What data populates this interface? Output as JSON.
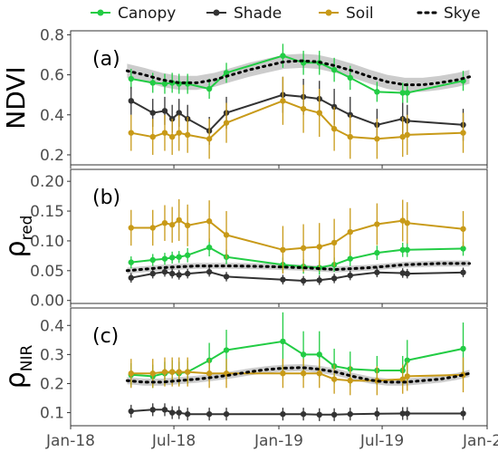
{
  "chart_data": {
    "type": "line",
    "legend": {
      "position": "top",
      "entries": [
        {
          "name": "Canopy",
          "color": "#22cc44",
          "style": "line-point"
        },
        {
          "name": "Shade",
          "color": "#333333",
          "style": "line-point"
        },
        {
          "name": "Soil",
          "color": "#c89a18",
          "style": "line-point"
        },
        {
          "name": "Skye",
          "color": "#000000",
          "style": "dotted"
        }
      ]
    },
    "x_ticks": [
      {
        "label": "Jan-18",
        "date": "2018-01-01"
      },
      {
        "label": "Jul-18",
        "date": "2018-07-01"
      },
      {
        "label": "Jan-19",
        "date": "2019-01-01"
      },
      {
        "label": "Jul-19",
        "date": "2019-07-01"
      },
      {
        "label": "Jan-20",
        "date": "2020-01-01"
      }
    ],
    "xlim": [
      "2018-01-01",
      "2020-01-01"
    ],
    "panels": [
      {
        "label": "(a)",
        "ylabel": "NDVI",
        "ylim": [
          0.15,
          0.82
        ],
        "yticks": [
          0.2,
          0.4,
          0.6,
          0.8
        ],
        "ytick_labels": [
          "0.2",
          "0.4",
          "0.6",
          "0.8"
        ],
        "skye": {
          "x": [
            "2018-04-10",
            "2018-05-10",
            "2018-06-10",
            "2018-07-10",
            "2018-08-10",
            "2018-09-10",
            "2018-10-10",
            "2018-11-10",
            "2018-12-10",
            "2019-01-10",
            "2019-02-10",
            "2019-03-10",
            "2019-04-10",
            "2019-05-10",
            "2019-06-10",
            "2019-07-10",
            "2019-08-10",
            "2019-09-10",
            "2019-10-10",
            "2019-11-10",
            "2019-12-01"
          ],
          "y": [
            0.62,
            0.6,
            0.575,
            0.56,
            0.56,
            0.575,
            0.6,
            0.625,
            0.645,
            0.665,
            0.67,
            0.665,
            0.645,
            0.62,
            0.59,
            0.565,
            0.55,
            0.55,
            0.56,
            0.575,
            0.59
          ],
          "band": 0.035
        },
        "series": [
          {
            "name": "Canopy",
            "color": "#22cc44",
            "x": [
              "2018-04-17",
              "2018-05-25",
              "2018-06-15",
              "2018-06-28",
              "2018-07-10",
              "2018-07-25",
              "2018-09-01",
              "2018-10-01",
              "2019-01-08",
              "2019-02-13",
              "2019-03-13",
              "2019-04-08",
              "2019-05-06",
              "2019-06-22",
              "2019-08-06",
              "2019-08-14",
              "2019-11-20"
            ],
            "y": [
              0.58,
              0.56,
              0.555,
              0.56,
              0.555,
              0.555,
              0.53,
              0.61,
              0.695,
              0.66,
              0.66,
              0.625,
              0.585,
              0.515,
              0.51,
              0.51,
              0.57
            ],
            "err": [
              0.05,
              0.05,
              0.05,
              0.05,
              0.05,
              0.05,
              0.05,
              0.05,
              0.06,
              0.06,
              0.06,
              0.06,
              0.06,
              0.05,
              0.05,
              0.05,
              0.05
            ]
          },
          {
            "name": "Shade",
            "color": "#333333",
            "x": [
              "2018-04-17",
              "2018-05-25",
              "2018-06-15",
              "2018-06-28",
              "2018-07-10",
              "2018-07-25",
              "2018-09-01",
              "2018-10-01",
              "2019-01-08",
              "2019-02-13",
              "2019-03-13",
              "2019-04-08",
              "2019-05-06",
              "2019-06-22",
              "2019-08-06",
              "2019-08-14",
              "2019-11-20"
            ],
            "y": [
              0.47,
              0.41,
              0.42,
              0.38,
              0.41,
              0.38,
              0.32,
              0.41,
              0.5,
              0.49,
              0.48,
              0.44,
              0.4,
              0.35,
              0.38,
              0.37,
              0.35
            ],
            "err": [
              0.07,
              0.07,
              0.07,
              0.07,
              0.07,
              0.07,
              0.07,
              0.08,
              0.09,
              0.09,
              0.09,
              0.09,
              0.09,
              0.08,
              0.08,
              0.08,
              0.08
            ]
          },
          {
            "name": "Soil",
            "color": "#c89a18",
            "x": [
              "2018-04-17",
              "2018-05-25",
              "2018-06-15",
              "2018-06-28",
              "2018-07-10",
              "2018-07-25",
              "2018-09-01",
              "2018-10-01",
              "2019-01-08",
              "2019-02-13",
              "2019-03-13",
              "2019-04-08",
              "2019-05-06",
              "2019-06-22",
              "2019-08-06",
              "2019-08-14",
              "2019-11-20"
            ],
            "y": [
              0.31,
              0.29,
              0.31,
              0.29,
              0.31,
              0.3,
              0.28,
              0.36,
              0.47,
              0.43,
              0.41,
              0.33,
              0.29,
              0.28,
              0.29,
              0.3,
              0.31
            ],
            "err": [
              0.09,
              0.09,
              0.09,
              0.09,
              0.09,
              0.09,
              0.1,
              0.1,
              0.12,
              0.12,
              0.12,
              0.11,
              0.11,
              0.1,
              0.1,
              0.1,
              0.1
            ]
          }
        ]
      },
      {
        "label": "(b)",
        "ylabel": "ρ",
        "ylabel_sub": "red",
        "ylim": [
          -0.005,
          0.22
        ],
        "yticks": [
          0.0,
          0.05,
          0.1,
          0.15,
          0.2
        ],
        "ytick_labels": [
          "0.00",
          "0.05",
          "0.10",
          "0.15",
          "0.20"
        ],
        "skye": {
          "x": [
            "2018-04-10",
            "2018-06-10",
            "2018-08-10",
            "2018-10-10",
            "2018-12-10",
            "2019-02-10",
            "2019-04-10",
            "2019-06-10",
            "2019-08-10",
            "2019-10-10",
            "2019-12-01"
          ],
          "y": [
            0.05,
            0.055,
            0.058,
            0.058,
            0.057,
            0.055,
            0.052,
            0.055,
            0.06,
            0.062,
            0.062
          ],
          "band": 0.005
        },
        "series": [
          {
            "name": "Canopy",
            "color": "#22cc44",
            "x": [
              "2018-04-17",
              "2018-05-25",
              "2018-06-15",
              "2018-06-28",
              "2018-07-10",
              "2018-07-25",
              "2018-09-01",
              "2018-10-01",
              "2019-01-08",
              "2019-02-13",
              "2019-03-13",
              "2019-04-08",
              "2019-05-06",
              "2019-06-22",
              "2019-08-06",
              "2019-08-14",
              "2019-11-20"
            ],
            "y": [
              0.064,
              0.068,
              0.07,
              0.072,
              0.073,
              0.076,
              0.089,
              0.073,
              0.06,
              0.057,
              0.055,
              0.06,
              0.07,
              0.08,
              0.085,
              0.085,
              0.087
            ],
            "err": [
              0.01,
              0.01,
              0.01,
              0.01,
              0.01,
              0.012,
              0.015,
              0.012,
              0.012,
              0.012,
              0.012,
              0.012,
              0.012,
              0.012,
              0.012,
              0.012,
              0.012
            ]
          },
          {
            "name": "Shade",
            "color": "#333333",
            "x": [
              "2018-04-17",
              "2018-05-25",
              "2018-06-15",
              "2018-06-28",
              "2018-07-10",
              "2018-07-25",
              "2018-09-01",
              "2018-10-01",
              "2019-01-08",
              "2019-02-13",
              "2019-03-13",
              "2019-04-08",
              "2019-05-06",
              "2019-06-22",
              "2019-08-06",
              "2019-08-14",
              "2019-11-20"
            ],
            "y": [
              0.038,
              0.045,
              0.048,
              0.045,
              0.043,
              0.045,
              0.048,
              0.04,
              0.035,
              0.033,
              0.034,
              0.037,
              0.042,
              0.047,
              0.046,
              0.045,
              0.047
            ],
            "err": [
              0.008,
              0.008,
              0.008,
              0.008,
              0.008,
              0.008,
              0.008,
              0.008,
              0.008,
              0.008,
              0.008,
              0.008,
              0.008,
              0.008,
              0.008,
              0.008,
              0.008
            ]
          },
          {
            "name": "Soil",
            "color": "#c89a18",
            "x": [
              "2018-04-17",
              "2018-05-25",
              "2018-06-15",
              "2018-06-28",
              "2018-07-10",
              "2018-07-25",
              "2018-09-01",
              "2018-10-01",
              "2019-01-08",
              "2019-02-13",
              "2019-03-13",
              "2019-04-08",
              "2019-05-06",
              "2019-06-22",
              "2019-08-06",
              "2019-08-14",
              "2019-11-20"
            ],
            "y": [
              0.122,
              0.122,
              0.13,
              0.127,
              0.135,
              0.126,
              0.133,
              0.11,
              0.085,
              0.088,
              0.09,
              0.097,
              0.115,
              0.128,
              0.134,
              0.13,
              0.12
            ],
            "err": [
              0.03,
              0.03,
              0.03,
              0.03,
              0.035,
              0.035,
              0.035,
              0.04,
              0.04,
              0.04,
              0.04,
              0.04,
              0.04,
              0.035,
              0.035,
              0.035,
              0.03
            ]
          }
        ]
      },
      {
        "label": "(c)",
        "ylabel": "ρ",
        "ylabel_sub": "NIR",
        "ylim": [
          0.055,
          0.46
        ],
        "yticks": [
          0.1,
          0.2,
          0.3,
          0.4
        ],
        "ytick_labels": [
          "0.1",
          "0.2",
          "0.3",
          "0.4"
        ],
        "skye": {
          "x": [
            "2018-04-10",
            "2018-05-10",
            "2018-06-10",
            "2018-07-10",
            "2018-08-10",
            "2018-09-10",
            "2018-10-10",
            "2018-11-10",
            "2018-12-10",
            "2019-01-10",
            "2019-02-10",
            "2019-03-10",
            "2019-04-10",
            "2019-05-10",
            "2019-06-10",
            "2019-07-10",
            "2019-08-10",
            "2019-09-10",
            "2019-10-10",
            "2019-11-10",
            "2019-12-01"
          ],
          "y": [
            0.21,
            0.205,
            0.205,
            0.21,
            0.215,
            0.222,
            0.23,
            0.24,
            0.248,
            0.253,
            0.255,
            0.25,
            0.24,
            0.225,
            0.212,
            0.205,
            0.205,
            0.21,
            0.215,
            0.225,
            0.235
          ],
          "band": 0.012
        },
        "series": [
          {
            "name": "Canopy",
            "color": "#22cc44",
            "x": [
              "2018-04-17",
              "2018-05-25",
              "2018-06-15",
              "2018-06-28",
              "2018-07-10",
              "2018-07-25",
              "2018-09-01",
              "2018-10-01",
              "2019-01-08",
              "2019-02-13",
              "2019-03-13",
              "2019-04-08",
              "2019-05-06",
              "2019-06-22",
              "2019-08-06",
              "2019-08-14",
              "2019-11-20"
            ],
            "y": [
              0.23,
              0.225,
              0.235,
              0.24,
              0.235,
              0.24,
              0.28,
              0.315,
              0.345,
              0.3,
              0.3,
              0.26,
              0.25,
              0.245,
              0.245,
              0.28,
              0.32
            ],
            "err": [
              0.04,
              0.04,
              0.04,
              0.04,
              0.04,
              0.04,
              0.06,
              0.07,
              0.1,
              0.08,
              0.08,
              0.06,
              0.06,
              0.05,
              0.05,
              0.07,
              0.09
            ]
          },
          {
            "name": "Shade",
            "color": "#333333",
            "x": [
              "2018-04-17",
              "2018-05-25",
              "2018-06-15",
              "2018-06-28",
              "2018-07-10",
              "2018-07-25",
              "2018-09-01",
              "2018-10-01",
              "2019-01-08",
              "2019-02-13",
              "2019-03-13",
              "2019-04-08",
              "2019-05-06",
              "2019-06-22",
              "2019-08-06",
              "2019-08-14",
              "2019-11-20"
            ],
            "y": [
              0.105,
              0.11,
              0.11,
              0.1,
              0.1,
              0.095,
              0.095,
              0.095,
              0.095,
              0.095,
              0.093,
              0.093,
              0.095,
              0.096,
              0.097,
              0.097,
              0.097
            ],
            "err": [
              0.022,
              0.022,
              0.022,
              0.022,
              0.022,
              0.022,
              0.022,
              0.022,
              0.022,
              0.022,
              0.022,
              0.022,
              0.022,
              0.022,
              0.022,
              0.022,
              0.022
            ]
          },
          {
            "name": "Soil",
            "color": "#c89a18",
            "x": [
              "2018-04-17",
              "2018-05-25",
              "2018-06-15",
              "2018-06-28",
              "2018-07-10",
              "2018-07-25",
              "2018-09-01",
              "2018-10-01",
              "2019-01-08",
              "2019-02-13",
              "2019-03-13",
              "2019-04-08",
              "2019-05-06",
              "2019-06-22",
              "2019-08-06",
              "2019-08-14",
              "2019-11-20"
            ],
            "y": [
              0.235,
              0.235,
              0.24,
              0.24,
              0.24,
              0.24,
              0.235,
              0.235,
              0.235,
              0.235,
              0.235,
              0.215,
              0.21,
              0.21,
              0.215,
              0.225,
              0.23
            ],
            "err": [
              0.05,
              0.05,
              0.05,
              0.05,
              0.05,
              0.05,
              0.05,
              0.05,
              0.05,
              0.05,
              0.05,
              0.05,
              0.05,
              0.05,
              0.05,
              0.05,
              0.06
            ]
          }
        ]
      }
    ]
  }
}
